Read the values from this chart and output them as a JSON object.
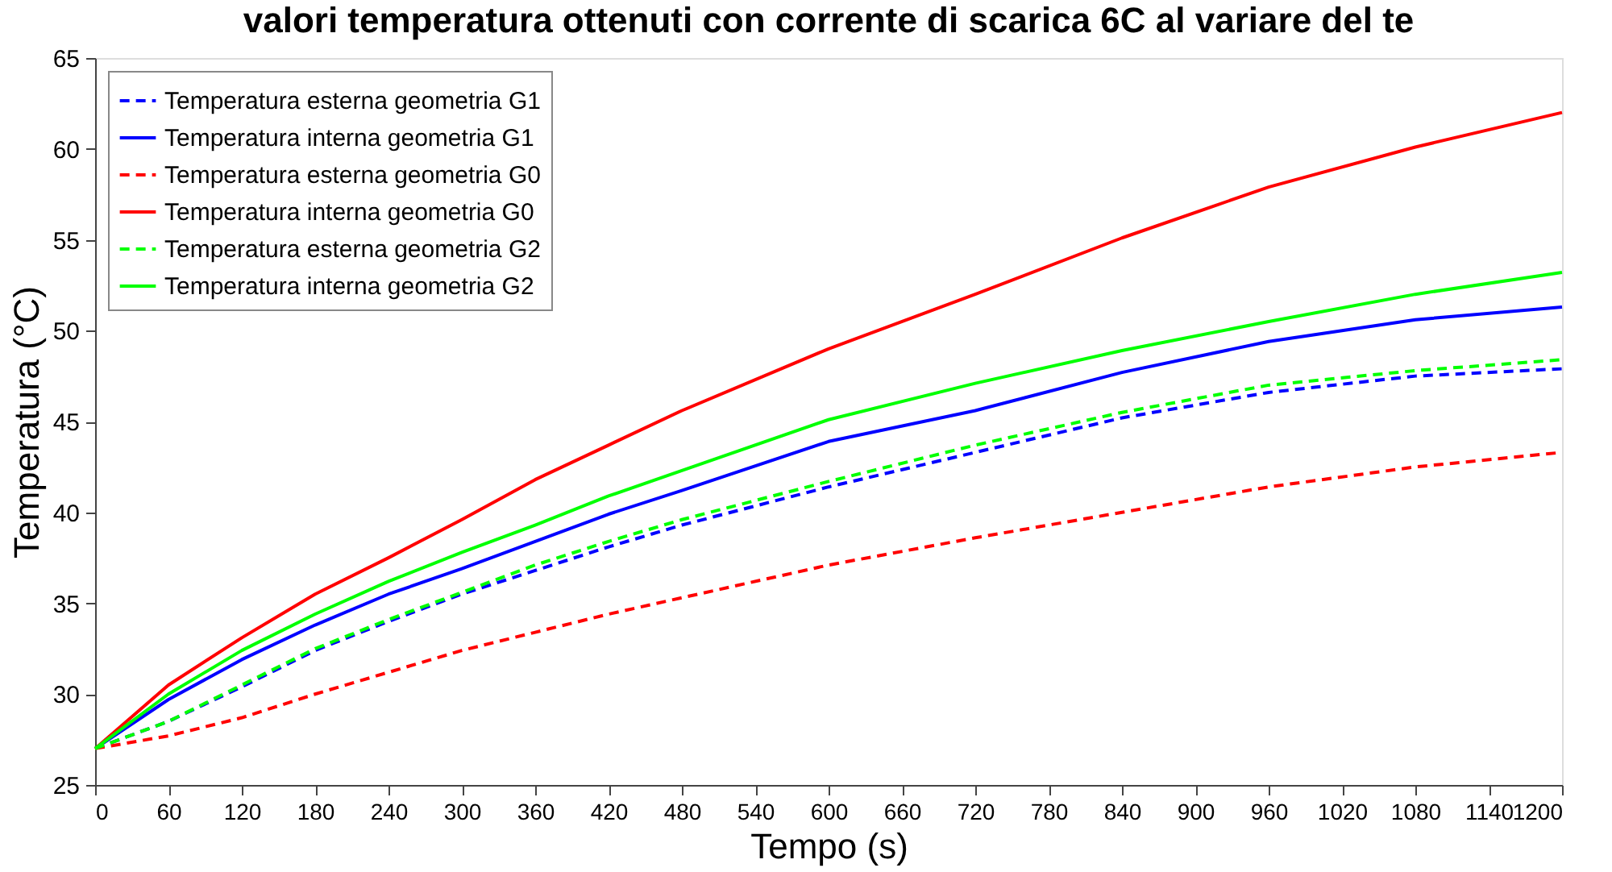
{
  "chart_data": {
    "type": "line",
    "title": "valori temperatura ottenuti con corrente di scarica 6C al variare del te",
    "xlabel": "Tempo (s)",
    "ylabel": "Temperatura (°C)",
    "xlim": [
      0,
      1200
    ],
    "xticks": [
      0,
      60,
      120,
      180,
      240,
      300,
      360,
      420,
      480,
      540,
      600,
      660,
      720,
      780,
      840,
      900,
      960,
      1020,
      1080,
      1140,
      1200
    ],
    "ylim": [
      25,
      65
    ],
    "yticks": [
      25,
      30,
      35,
      40,
      45,
      50,
      55,
      60,
      65
    ],
    "grid": false,
    "legend": "top left",
    "x": [
      0,
      60,
      120,
      180,
      240,
      300,
      360,
      420,
      480,
      600,
      720,
      840,
      960,
      1080,
      1200
    ],
    "series": [
      {
        "name": "Temperatura esterna geometria G1",
        "color": "#0000ff",
        "line_style": "dashed",
        "values": [
          27.0,
          28.5,
          30.4,
          32.4,
          34.0,
          35.5,
          36.8,
          38.1,
          39.3,
          41.4,
          43.3,
          45.2,
          46.6,
          47.5,
          47.9
        ]
      },
      {
        "name": "Temperatura interna geometria G1",
        "color": "#0000ff",
        "line_style": "solid",
        "values": [
          27.0,
          29.7,
          31.9,
          33.8,
          35.5,
          36.9,
          38.4,
          39.9,
          41.2,
          43.9,
          45.6,
          47.7,
          49.4,
          50.6,
          51.3
        ]
      },
      {
        "name": "Temperatura esterna geometria G0",
        "color": "#ff0000",
        "line_style": "dashed",
        "values": [
          27.0,
          27.7,
          28.7,
          30.0,
          31.2,
          32.4,
          33.4,
          34.4,
          35.3,
          37.1,
          38.6,
          40.0,
          41.4,
          42.5,
          43.3
        ]
      },
      {
        "name": "Temperatura interna geometria G0",
        "color": "#ff0000",
        "line_style": "solid",
        "values": [
          27.0,
          30.5,
          33.1,
          35.5,
          37.5,
          39.6,
          41.8,
          43.7,
          45.6,
          49.0,
          52.0,
          55.1,
          57.9,
          60.1,
          62.0
        ]
      },
      {
        "name": "Temperatura esterna geometria G2",
        "color": "#00ff00",
        "line_style": "dashed",
        "values": [
          27.0,
          28.5,
          30.5,
          32.5,
          34.1,
          35.6,
          37.1,
          38.4,
          39.6,
          41.7,
          43.7,
          45.5,
          47.0,
          47.8,
          48.4
        ]
      },
      {
        "name": "Temperatura interna geometria G2",
        "color": "#00ff00",
        "line_style": "solid",
        "values": [
          27.0,
          30.0,
          32.4,
          34.4,
          36.2,
          37.8,
          39.3,
          40.9,
          42.3,
          45.1,
          47.1,
          48.9,
          50.5,
          52.0,
          53.2
        ]
      }
    ]
  }
}
